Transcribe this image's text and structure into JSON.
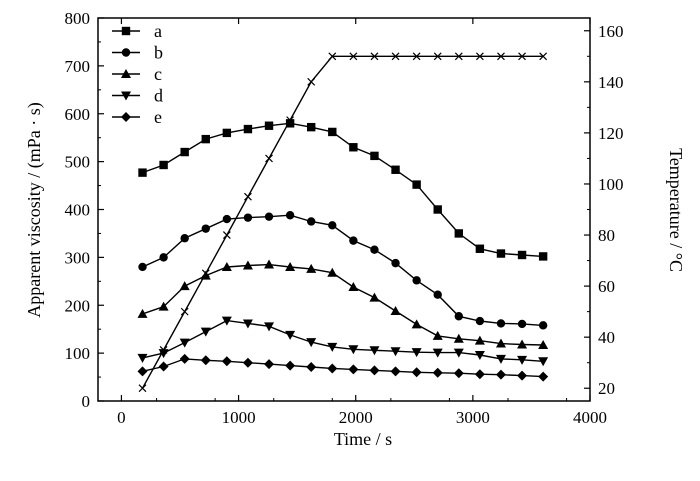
{
  "chart_data": {
    "type": "line",
    "xlabel": "Time / s",
    "ylabel": "Apparent viscosity / (mPa · s)",
    "y2label": "Temperature / °C",
    "xlim": [
      -200,
      4000
    ],
    "ylim": [
      0,
      800
    ],
    "y2lim": [
      15,
      165
    ],
    "x_ticks": [
      0,
      1000,
      2000,
      3000,
      4000
    ],
    "y_ticks": [
      0,
      100,
      200,
      300,
      400,
      500,
      600,
      700,
      800
    ],
    "y2_ticks": [
      20,
      40,
      60,
      80,
      100,
      120,
      140,
      160
    ],
    "legend_position": "top-left",
    "grid": false,
    "series": [
      {
        "name": "a",
        "marker": "square",
        "axis": "left",
        "x": [
          180,
          360,
          540,
          720,
          900,
          1080,
          1260,
          1440,
          1620,
          1800,
          1980,
          2160,
          2340,
          2520,
          2700,
          2880,
          3060,
          3240,
          3420,
          3600
        ],
        "y": [
          477,
          493,
          520,
          547,
          560,
          568,
          575,
          580,
          572,
          562,
          530,
          512,
          483,
          452,
          400,
          350,
          318,
          308,
          305,
          302
        ]
      },
      {
        "name": "b",
        "marker": "circle",
        "axis": "left",
        "x": [
          180,
          360,
          540,
          720,
          900,
          1080,
          1260,
          1440,
          1620,
          1800,
          1980,
          2160,
          2340,
          2520,
          2700,
          2880,
          3060,
          3240,
          3420,
          3600
        ],
        "y": [
          280,
          300,
          340,
          360,
          380,
          383,
          385,
          388,
          375,
          367,
          335,
          316,
          288,
          252,
          222,
          177,
          167,
          162,
          161,
          158
        ]
      },
      {
        "name": "c",
        "marker": "triangle-up",
        "axis": "left",
        "x": [
          180,
          360,
          540,
          720,
          900,
          1080,
          1260,
          1440,
          1620,
          1800,
          1980,
          2160,
          2340,
          2520,
          2700,
          2880,
          3060,
          3240,
          3420,
          3600
        ],
        "y": [
          182,
          197,
          240,
          262,
          280,
          283,
          285,
          280,
          276,
          268,
          238,
          216,
          188,
          160,
          136,
          130,
          126,
          120,
          118,
          117
        ]
      },
      {
        "name": "d",
        "marker": "triangle-down",
        "axis": "left",
        "x": [
          180,
          360,
          540,
          720,
          900,
          1080,
          1260,
          1440,
          1620,
          1800,
          1980,
          2160,
          2340,
          2520,
          2700,
          2880,
          3060,
          3240,
          3420,
          3600
        ],
        "y": [
          90,
          100,
          122,
          145,
          168,
          162,
          156,
          138,
          123,
          113,
          108,
          106,
          104,
          102,
          101,
          101,
          96,
          88,
          86,
          83
        ]
      },
      {
        "name": "e",
        "marker": "diamond",
        "axis": "left",
        "x": [
          180,
          360,
          540,
          720,
          900,
          1080,
          1260,
          1440,
          1620,
          1800,
          1980,
          2160,
          2340,
          2520,
          2700,
          2880,
          3060,
          3240,
          3420,
          3600
        ],
        "y": [
          62,
          72,
          88,
          85,
          83,
          80,
          77,
          74,
          71,
          68,
          66,
          64,
          62,
          60,
          59,
          58,
          56,
          55,
          53,
          51
        ]
      },
      {
        "marker": "x",
        "axis": "right",
        "x": [
          180,
          360,
          540,
          720,
          900,
          1080,
          1260,
          1440,
          1620,
          1800,
          1980,
          2160,
          2340,
          2520,
          2700,
          2880,
          3060,
          3240,
          3420,
          3600
        ],
        "y": [
          20,
          35,
          50,
          65,
          80,
          95,
          110,
          125,
          140,
          150,
          150,
          150,
          150,
          150,
          150,
          150,
          150,
          150,
          150,
          150
        ]
      }
    ]
  }
}
